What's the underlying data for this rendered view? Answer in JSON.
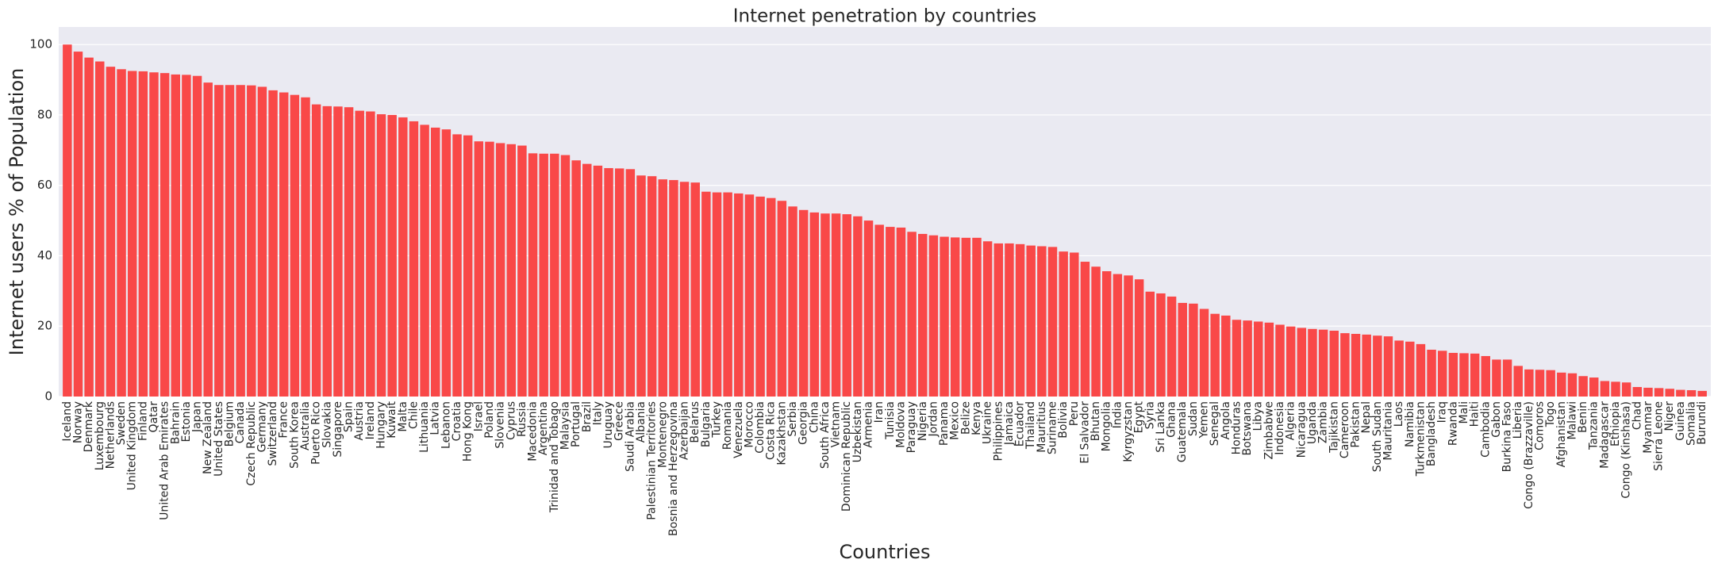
{
  "chart_data": {
    "type": "bar",
    "title": "Internet penetration by countries",
    "xlabel": "Countries",
    "ylabel": "Internet users % of Population",
    "color": "#f94848",
    "grid": true,
    "ylim": [
      0,
      105
    ],
    "yticks": [
      0,
      20,
      40,
      60,
      80,
      100
    ],
    "categories": [
      "Iceland",
      "Norway",
      "Denmark",
      "Luxembourg",
      "Netherlands",
      "Sweden",
      "United Kingdom",
      "Finland",
      "Qatar",
      "United Arab Emirates",
      "Bahrain",
      "Estonia",
      "Japan",
      "New Zealand",
      "United States",
      "Belgium",
      "Canada",
      "Czech Republic",
      "Germany",
      "Switzerland",
      "France",
      "South Korea",
      "Australia",
      "Puerto Rico",
      "Slovakia",
      "Singapore",
      "Spain",
      "Austria",
      "Ireland",
      "Hungary",
      "Kuwait",
      "Malta",
      "Chile",
      "Lithuania",
      "Latvia",
      "Lebanon",
      "Croatia",
      "Hong Kong",
      "Israel",
      "Poland",
      "Slovenia",
      "Cyprus",
      "Russia",
      "Macedonia",
      "Argentina",
      "Trinidad and Tobago",
      "Malaysia",
      "Portugal",
      "Brazil",
      "Italy",
      "Uruguay",
      "Greece",
      "Saudi Arabia",
      "Albania",
      "Palestinian Territories",
      "Montenegro",
      "Bosnia and Herzegovina",
      "Azerbaijan",
      "Belarus",
      "Bulgaria",
      "Turkey",
      "Romania",
      "Venezuela",
      "Morocco",
      "Colombia",
      "Costa Rica",
      "Kazakhstan",
      "Serbia",
      "Georgia",
      "China",
      "South Africa",
      "Vietnam",
      "Dominican Republic",
      "Uzbekistan",
      "Armenia",
      "Iran",
      "Tunisia",
      "Moldova",
      "Paraguay",
      "Nigeria",
      "Jordan",
      "Panama",
      "Mexico",
      "Belize",
      "Kenya",
      "Ukraine",
      "Philippines",
      "Jamaica",
      "Ecuador",
      "Thailand",
      "Mauritius",
      "Suriname",
      "Bolivia",
      "Peru",
      "El Salvador",
      "Bhutan",
      "Mongolia",
      "India",
      "Kyrgyzstan",
      "Egypt",
      "Syria",
      "Sri Lanka",
      "Ghana",
      "Guatemala",
      "Sudan",
      "Yemen",
      "Senegal",
      "Angola",
      "Honduras",
      "Botswana",
      "Libya",
      "Zimbabwe",
      "Indonesia",
      "Algeria",
      "Nicaragua",
      "Uganda",
      "Zambia",
      "Tajikistan",
      "Cameroon",
      "Pakistan",
      "Nepal",
      "South Sudan",
      "Mauritania",
      "Laos",
      "Namibia",
      "Turkmenistan",
      "Bangladesh",
      "Iraq",
      "Rwanda",
      "Mali",
      "Haiti",
      "Cambodia",
      "Gabon",
      "Burkina Faso",
      "Liberia",
      "Congo (Brazzaville)",
      "Comoros",
      "Togo",
      "Afghanistan",
      "Malawi",
      "Benin",
      "Tanzania",
      "Madagascar",
      "Ethiopia",
      "Congo (Kinshasa)",
      "Chad",
      "Myanmar",
      "Sierra Leone",
      "Niger",
      "Guinea",
      "Somalia",
      "Burundi"
    ],
    "values": [
      100,
      98,
      96.3,
      95.2,
      93.7,
      93,
      92.5,
      92.4,
      92.1,
      91.9,
      91.5,
      91.4,
      91.1,
      89.2,
      88.5,
      88.5,
      88.5,
      88.4,
      88,
      87,
      86.4,
      85.7,
      85,
      83,
      82.5,
      82.4,
      82.2,
      81.2,
      81,
      80.2,
      80,
      79.3,
      78.2,
      77.2,
      76.4,
      75.9,
      74.5,
      74.2,
      72.5,
      72.4,
      72,
      71.7,
      71.3,
      69.1,
      69,
      69,
      68.6,
      67.1,
      66.1,
      65.6,
      64.9,
      64.8,
      64.6,
      62.8,
      62.6,
      61.7,
      61.5,
      61,
      60.8,
      58.2,
      58,
      58,
      57.7,
      57.4,
      56.8,
      56.4,
      55.6,
      54,
      53,
      52.3,
      52,
      52,
      51.8,
      51.2,
      50,
      48.8,
      48.2,
      48,
      46.8,
      46.2,
      45.8,
      45.4,
      45.2,
      45.1,
      45.1,
      44.1,
      43.5,
      43.5,
      43.3,
      42.9,
      42.7,
      42.5,
      41.2,
      40.9,
      38.3,
      36.9,
      35.6,
      34.8,
      34.4,
      33.3,
      29.8,
      29.3,
      28.4,
      26.6,
      26.4,
      24.9,
      23.5,
      23,
      21.8,
      21.6,
      21.3,
      21,
      20.4,
      19.9,
      19.5,
      19.2,
      19,
      18.7,
      18,
      17.8,
      17.6,
      17.3,
      17.1,
      15.9,
      15.6,
      14.9,
      13.3,
      13,
      12.4,
      12.3,
      12.2,
      11.5,
      10.5,
      10.5,
      8.7,
      7.7,
      7.6,
      7.5,
      6.8,
      6.6,
      5.8,
      5.4,
      4.4,
      4.2,
      4,
      2.7,
      2.5,
      2.4,
      2.2,
      1.9,
      1.8,
      1.6
    ]
  }
}
